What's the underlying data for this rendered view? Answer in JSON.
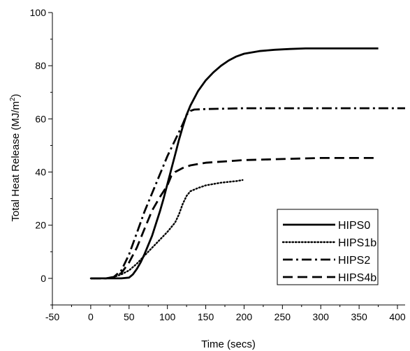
{
  "chart_data": {
    "type": "line",
    "title": "",
    "xlabel": "Time (secs)",
    "ylabel_main": "Total Heat Release (MJ/m",
    "ylabel_sup": "2",
    "ylabel_tail": ")",
    "xlim": [
      -50,
      410
    ],
    "ylim": [
      -10,
      100
    ],
    "x_ticks": [
      -50,
      0,
      50,
      100,
      150,
      200,
      250,
      300,
      350,
      400
    ],
    "y_ticks": [
      0,
      20,
      40,
      60,
      80,
      100
    ],
    "grid": false,
    "legend_position": "bottom-right",
    "series": [
      {
        "name": "HIPS0",
        "style": "solid",
        "x": [
          0,
          20,
          40,
          50,
          55,
          60,
          65,
          70,
          75,
          80,
          85,
          90,
          95,
          100,
          105,
          110,
          115,
          120,
          125,
          130,
          140,
          150,
          160,
          170,
          180,
          190,
          200,
          220,
          240,
          260,
          280,
          300,
          330,
          375
        ],
        "y": [
          0,
          0,
          0,
          0.3,
          1.5,
          3.5,
          6,
          9,
          12.5,
          16,
          20.5,
          25,
          30,
          35.5,
          41,
          46.5,
          52,
          57,
          61.5,
          65,
          70.5,
          74.5,
          77.5,
          80,
          82,
          83.5,
          84.5,
          85.5,
          86,
          86.3,
          86.5,
          86.5,
          86.5,
          86.5
        ]
      },
      {
        "name": "HIPS1b",
        "style": "dotted",
        "x": [
          0,
          20,
          30,
          40,
          50,
          60,
          70,
          80,
          90,
          100,
          110,
          115,
          120,
          125,
          130,
          140,
          150,
          160,
          170,
          180,
          190,
          198
        ],
        "y": [
          0,
          0,
          0.5,
          1.5,
          3,
          5.5,
          8.5,
          11.5,
          14.5,
          17.5,
          21,
          24,
          28,
          31,
          32.8,
          34,
          35,
          35.5,
          36,
          36.3,
          36.6,
          37
        ]
      },
      {
        "name": "HIPS2",
        "style": "dashdot",
        "x": [
          0,
          20,
          30,
          40,
          50,
          60,
          70,
          80,
          90,
          100,
          110,
          120,
          125,
          130,
          135,
          150,
          200,
          300,
          410
        ],
        "y": [
          0,
          0,
          0.5,
          3,
          9,
          17,
          25,
          32,
          39,
          46,
          52,
          58,
          61.5,
          63,
          63.5,
          63.7,
          64,
          64,
          64
        ]
      },
      {
        "name": "HIPS4b",
        "style": "dashed",
        "x": [
          0,
          20,
          30,
          40,
          50,
          60,
          70,
          80,
          90,
          100,
          105,
          110,
          120,
          130,
          150,
          200,
          300,
          375
        ],
        "y": [
          0,
          0,
          0.5,
          2,
          6,
          11.5,
          18.5,
          25.5,
          30.5,
          35,
          38.5,
          40,
          41.5,
          42.5,
          43.5,
          44.5,
          45.3,
          45.3
        ]
      }
    ]
  }
}
